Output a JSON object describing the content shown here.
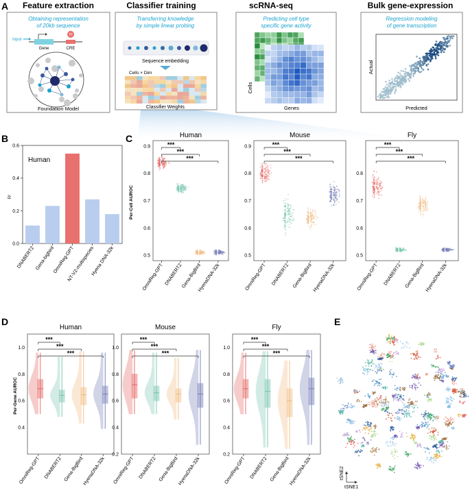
{
  "panel_letters": {
    "a": "A",
    "b": "B",
    "c": "C",
    "d": "D",
    "e": "E"
  },
  "section_a": {
    "feature_extraction": {
      "title": "Feature extraction",
      "subtitle_line1": "Obtaining representation",
      "subtitle_line2": "of 20kb sequence",
      "input_label": "Input",
      "gene_label": "Gene",
      "cre_label": "CRE",
      "tf_label": "TF",
      "caption": "Foundation Model"
    },
    "classifier_training": {
      "title": "Classifier training",
      "subtitle_line1": "Transferring knowledge",
      "subtitle_line2": "by simple linear probing",
      "embedding_label": "Sequence embedding",
      "matrix_label": "Cells × Dim",
      "caption": "Classifier Weights"
    },
    "scrna": {
      "title": "scRNA-seq",
      "subtitle_line1": "Predicting cell type",
      "subtitle_line2": "specific gene activity",
      "y_label": "Cells",
      "x_label": "Genes"
    },
    "bulk": {
      "title": "Bulk gene-expression",
      "subtitle_line1": "Regression modeling",
      "subtitle_line2": "of gene transcription",
      "y_label": "Actual",
      "x_label": "Predicted"
    }
  },
  "colors": {
    "accent_cyan": "#1aa3cf",
    "omnireg": "#e8706d",
    "dnabert2": "#7fc8b4",
    "genabigbird": "#f2c08a",
    "hyenadna": "#7d84bb",
    "bar_other": "#b9cdee",
    "bar_highlight": "#e8706d"
  },
  "chart_data": [
    {
      "id": "B",
      "type": "bar",
      "title": "Human",
      "ylabel": "R²",
      "ylim": [
        0,
        0.6
      ],
      "yticks": [
        0.0,
        0.2,
        0.4,
        0.6
      ],
      "yticklabels": [
        "0.0",
        "0.2",
        "0.4",
        "0.6"
      ],
      "categories": [
        "DNABERT2",
        "Gena-bigbird",
        "OmniReg-GPT",
        "NT-V2-multispecies",
        "Hyena DNA-32k"
      ],
      "values": [
        0.11,
        0.23,
        0.55,
        0.27,
        0.18
      ],
      "highlight_index": 2
    },
    {
      "id": "C",
      "type": "scatter",
      "ylabel": "Per-Cell AUROC",
      "categories": [
        "OmniReg-GPT",
        "DNABERT2",
        "Gena-BigBird",
        "HyenaDNA-32k"
      ],
      "significance": "***",
      "panels": [
        {
          "title": "Human",
          "ylim": [
            0.48,
            0.92
          ],
          "yticks": [
            0.5,
            0.6,
            0.7,
            0.8,
            0.9
          ],
          "yticklabels": [
            "0.5",
            "0.6",
            "0.7",
            "0.8",
            "0.9"
          ],
          "medians": [
            0.84,
            0.745,
            0.51,
            0.51
          ],
          "spreads": [
            0.02,
            0.015,
            0.008,
            0.008
          ]
        },
        {
          "title": "Mouse",
          "ylim": [
            0.48,
            0.92
          ],
          "yticks": [
            0.5,
            0.6,
            0.7,
            0.8,
            0.9
          ],
          "yticklabels": [
            "0.5",
            "0.6",
            "0.7",
            "0.8",
            "0.9"
          ],
          "medians": [
            0.8,
            0.65,
            0.635,
            0.725
          ],
          "spreads": [
            0.03,
            0.05,
            0.03,
            0.04
          ]
        },
        {
          "title": "Fly",
          "ylim": [
            0.48,
            0.92
          ],
          "yticks": [
            0.5,
            0.6,
            0.7,
            0.8
          ],
          "yticklabels": [
            "0.5",
            "0.6",
            "0.7",
            "0.8"
          ],
          "medians": [
            0.755,
            0.52,
            0.685,
            0.52
          ],
          "spreads": [
            0.04,
            0.006,
            0.03,
            0.006
          ]
        }
      ]
    },
    {
      "id": "D",
      "type": "box",
      "ylabel": "Per-Gene AUROC",
      "categories": [
        "OmniReg-GPT",
        "DNABERT2",
        "Gena-BigBird",
        "HyenaDNA-32k"
      ],
      "significance": "***",
      "panels": [
        {
          "title": "Human",
          "ylim": [
            0.2,
            1.1
          ],
          "yticks": [
            0.4,
            0.6,
            0.8,
            1.0
          ],
          "yticklabels": [
            "0.4",
            "0.6",
            "0.8",
            "1.0"
          ],
          "boxes": [
            [
              0.5,
              0.62,
              0.69,
              0.76,
              0.96
            ],
            [
              0.48,
              0.59,
              0.64,
              0.68,
              0.93
            ],
            [
              0.43,
              0.57,
              0.645,
              0.7,
              0.97
            ],
            [
              0.39,
              0.58,
              0.65,
              0.71,
              0.96
            ]
          ]
        },
        {
          "title": "Mouse",
          "ylim": [
            0.2,
            1.1
          ],
          "yticks": [
            0.2,
            0.4,
            0.6,
            0.8,
            1.0
          ],
          "yticklabels": [
            "0.2",
            "0.4",
            "0.6",
            "0.8",
            "1.0"
          ],
          "boxes": [
            [
              0.5,
              0.62,
              0.72,
              0.8,
              0.98
            ],
            [
              0.5,
              0.6,
              0.66,
              0.71,
              0.96
            ],
            [
              0.46,
              0.59,
              0.65,
              0.69,
              0.92
            ],
            [
              0.27,
              0.55,
              0.65,
              0.73,
              0.98
            ]
          ]
        },
        {
          "title": "Fly",
          "ylim": [
            0.2,
            1.1
          ],
          "yticks": [
            0.2,
            0.4,
            0.6,
            0.8,
            1.0
          ],
          "yticklabels": [
            "0.2",
            "0.4",
            "0.6",
            "0.8",
            "1.0"
          ],
          "boxes": [
            [
              0.5,
              0.62,
              0.69,
              0.76,
              0.96
            ],
            [
              0.25,
              0.55,
              0.67,
              0.76,
              0.97
            ],
            [
              0.24,
              0.48,
              0.6,
              0.69,
              0.9
            ],
            [
              0.27,
              0.57,
              0.69,
              0.77,
              0.98
            ]
          ]
        }
      ]
    },
    {
      "id": "E",
      "type": "scatter",
      "xlabel": "tSNE1",
      "ylabel": "tSNE2"
    }
  ]
}
